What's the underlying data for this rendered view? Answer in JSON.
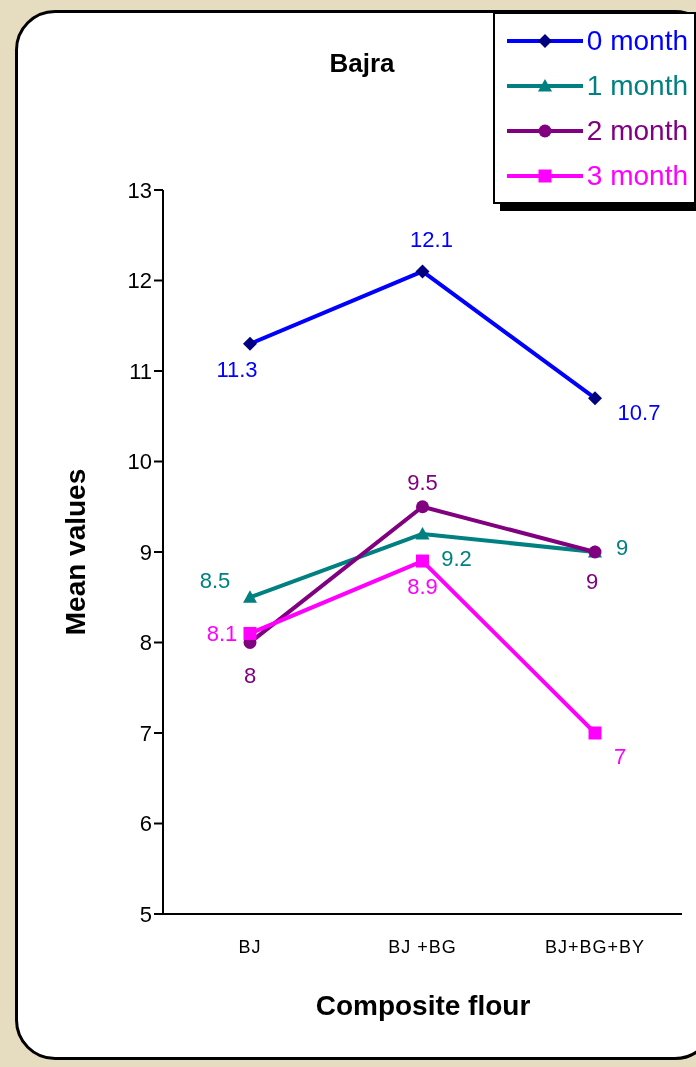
{
  "chart_data": {
    "type": "line",
    "title": "Bajra",
    "xlabel": "Composite flour",
    "ylabel": "Mean values",
    "categories": [
      "BJ",
      "BJ +BG",
      "BJ+BG+BY"
    ],
    "series": [
      {
        "name": "0 month",
        "color": "#0000ff",
        "marker": "diamond",
        "values": [
          11.3,
          12.1,
          10.7
        ]
      },
      {
        "name": "1 month",
        "color": "#008080",
        "marker": "triangle",
        "values": [
          8.5,
          9.2,
          9
        ]
      },
      {
        "name": "2 month",
        "color": "#800080",
        "marker": "circle",
        "values": [
          8,
          9.5,
          9
        ]
      },
      {
        "name": "3 month",
        "color": "#ff00ff",
        "marker": "square",
        "values": [
          8.1,
          8.9,
          7
        ]
      }
    ],
    "ylim": [
      5,
      13
    ],
    "yticks": [
      5,
      6,
      7,
      8,
      9,
      10,
      11,
      12,
      13
    ],
    "grid": false,
    "legend": "top right",
    "data_labels": true,
    "line_style": "solid"
  }
}
